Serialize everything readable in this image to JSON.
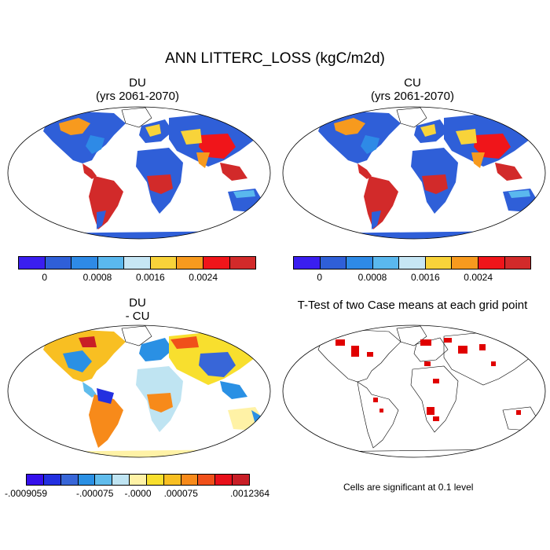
{
  "figure": {
    "title": "ANN LITTERC_LOSS (kgC/m2d)"
  },
  "panels": [
    {
      "id": "du",
      "title_line1": "DU",
      "title_line2": "(yrs 2061-2070)",
      "colorbar": {
        "colors": [
          "#3a1ef0",
          "#2f5fd8",
          "#2e8ae6",
          "#5ab8ee",
          "#c6e6f4",
          "#f8d33a",
          "#f79a1e",
          "#f0151a",
          "#d22a2a"
        ],
        "tick_labels": [
          "0",
          "0.0008",
          "0.0016",
          "0.0024"
        ]
      }
    },
    {
      "id": "cu",
      "title_line1": "CU",
      "title_line2": "(yrs 2061-2070)",
      "colorbar": {
        "colors": [
          "#3a1ef0",
          "#2f5fd8",
          "#2e8ae6",
          "#5ab8ee",
          "#c6e6f4",
          "#f8d33a",
          "#f79a1e",
          "#f0151a",
          "#d22a2a"
        ],
        "tick_labels": [
          "0",
          "0.0008",
          "0.0016",
          "0.0024"
        ]
      }
    },
    {
      "id": "diff",
      "title_line1": "DU",
      "title_line2": "- CU",
      "colorbar": {
        "colors": [
          "#3510ec",
          "#2330e0",
          "#3866d8",
          "#2a90e4",
          "#60bcec",
          "#bfe4f2",
          "#fff2a6",
          "#f8df2e",
          "#f8bf22",
          "#f78a1a",
          "#f0501a",
          "#e8101a",
          "#c81e26"
        ],
        "tick_labels": [
          "-.0009059",
          "-.000075",
          "-.0000",
          ".000075",
          ".0012364"
        ]
      }
    },
    {
      "id": "ttest",
      "title_line1": "T-Test of two Case means at each grid point",
      "note": "Cells are significant at 0.1 level",
      "significance_color": "#e00000"
    }
  ]
}
